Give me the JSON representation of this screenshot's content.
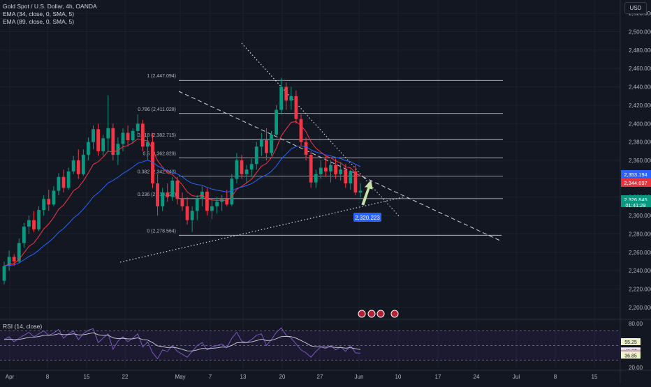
{
  "header": {
    "title": "Gold Spot / U.S. Dollar, 4h, OANDA",
    "indicator_1": "EMA (34, close, 0, SMA, 5)",
    "indicator_2": "EMA (89, close, 0, SMA, 5)",
    "currency": "USD"
  },
  "rsi": {
    "label": "RSI (14, close)",
    "axis_ticks": [
      "80.00",
      "20.00"
    ],
    "badges": [
      {
        "text": "55.25",
        "bg": "#f0f3c8",
        "fg": "#131722"
      },
      {
        "text": "42.65",
        "bg": "#e9e9ee",
        "fg": "#131722"
      },
      {
        "text": "39.48",
        "bg": "#c6a4c2",
        "fg": "#131722"
      },
      {
        "text": "36.85",
        "bg": "#f0f3c8",
        "fg": "#131722"
      }
    ]
  },
  "price_badges": [
    {
      "text": "2,353.194",
      "bg": "#2962ff"
    },
    {
      "text": "2,344.697",
      "bg": "#e8323c"
    },
    {
      "text": "2,326.845",
      "bg": "#089981"
    },
    {
      "text": "01:41:29",
      "bg": "#089981"
    }
  ],
  "annotation": {
    "label": "2,320.223",
    "color": "#2962ff"
  },
  "colors": {
    "up": "#089981",
    "down": "#f23645",
    "ema34": "#f23645",
    "ema89": "#2962ff"
  },
  "chart_data": {
    "type": "candlestick",
    "y_ticks": [
      "2,520.000",
      "2,500.000",
      "2,480.000",
      "2,460.000",
      "2,440.000",
      "2,420.000",
      "2,400.000",
      "2,380.000",
      "2,360.000",
      "2,340.000",
      "2,320.000",
      "2,300.000",
      "2,280.000",
      "2,260.000",
      "2,240.000",
      "2,220.000",
      "2,200.000"
    ],
    "ylim": [
      2190,
      2530
    ],
    "x_ticks": [
      "Apr",
      "8",
      "15",
      "22",
      "May",
      "7",
      "13",
      "20",
      "27",
      "Jun",
      "10",
      "17",
      "24",
      "Jul",
      "8",
      "15"
    ],
    "fib_levels": [
      {
        "label": "1 (2,447.094)",
        "value": 2447.094
      },
      {
        "label": "0.786 (2,411.028)",
        "value": 2411.028
      },
      {
        "label": "0.618 (2,382.715)",
        "value": 2382.715
      },
      {
        "label": "0.5 (2,362.829)",
        "value": 2362.829
      },
      {
        "label": "0.382 (2,342.942)",
        "value": 2342.942
      },
      {
        "label": "0.236 (2,318.337)",
        "value": 2318.337
      },
      {
        "label": "0 (2,278.564)",
        "value": 2278.564
      }
    ],
    "series": [
      {
        "name": "Gold Spot / U.S. Dollar",
        "kind": "ohlc",
        "points": [
          [
            2229,
            2250,
            2225,
            2245
          ],
          [
            2245,
            2262,
            2240,
            2255
          ],
          [
            2255,
            2258,
            2245,
            2250
          ],
          [
            2250,
            2275,
            2248,
            2270
          ],
          [
            2270,
            2292,
            2265,
            2288
          ],
          [
            2288,
            2300,
            2280,
            2295
          ],
          [
            2295,
            2305,
            2282,
            2285
          ],
          [
            2285,
            2310,
            2283,
            2306
          ],
          [
            2306,
            2322,
            2300,
            2318
          ],
          [
            2318,
            2328,
            2305,
            2312
          ],
          [
            2312,
            2332,
            2310,
            2327
          ],
          [
            2327,
            2346,
            2322,
            2342
          ],
          [
            2342,
            2350,
            2325,
            2330
          ],
          [
            2330,
            2352,
            2328,
            2348
          ],
          [
            2348,
            2365,
            2345,
            2360
          ],
          [
            2360,
            2372,
            2340,
            2345
          ],
          [
            2345,
            2372,
            2343,
            2366
          ],
          [
            2366,
            2385,
            2360,
            2380
          ],
          [
            2380,
            2398,
            2372,
            2394
          ],
          [
            2394,
            2400,
            2365,
            2370
          ],
          [
            2370,
            2388,
            2365,
            2384
          ],
          [
            2384,
            2431,
            2370,
            2395
          ],
          [
            2395,
            2400,
            2360,
            2366
          ],
          [
            2366,
            2385,
            2355,
            2378
          ],
          [
            2378,
            2395,
            2370,
            2390
          ],
          [
            2390,
            2398,
            2375,
            2382
          ],
          [
            2382,
            2395,
            2378,
            2392
          ],
          [
            2392,
            2410,
            2385,
            2400
          ],
          [
            2400,
            2404,
            2370,
            2375
          ],
          [
            2375,
            2388,
            2360,
            2380
          ],
          [
            2380,
            2390,
            2330,
            2335
          ],
          [
            2335,
            2345,
            2300,
            2310
          ],
          [
            2310,
            2330,
            2305,
            2325
          ],
          [
            2325,
            2335,
            2315,
            2320
          ],
          [
            2320,
            2342,
            2316,
            2338
          ],
          [
            2338,
            2342,
            2312,
            2318
          ],
          [
            2318,
            2325,
            2305,
            2310
          ],
          [
            2310,
            2320,
            2290,
            2295
          ],
          [
            2295,
            2310,
            2282,
            2305
          ],
          [
            2305,
            2322,
            2295,
            2318
          ],
          [
            2318,
            2332,
            2310,
            2326
          ],
          [
            2326,
            2330,
            2300,
            2305
          ],
          [
            2305,
            2318,
            2296,
            2310
          ],
          [
            2310,
            2320,
            2302,
            2315
          ],
          [
            2315,
            2322,
            2305,
            2318
          ],
          [
            2318,
            2328,
            2310,
            2312
          ],
          [
            2312,
            2345,
            2310,
            2340
          ],
          [
            2340,
            2368,
            2335,
            2360
          ],
          [
            2360,
            2366,
            2340,
            2345
          ],
          [
            2345,
            2355,
            2335,
            2350
          ],
          [
            2350,
            2362,
            2342,
            2356
          ],
          [
            2356,
            2380,
            2350,
            2375
          ],
          [
            2375,
            2390,
            2365,
            2382
          ],
          [
            2382,
            2395,
            2360,
            2368
          ],
          [
            2368,
            2392,
            2365,
            2388
          ],
          [
            2388,
            2420,
            2385,
            2415
          ],
          [
            2415,
            2450,
            2410,
            2440
          ],
          [
            2440,
            2445,
            2415,
            2425
          ],
          [
            2425,
            2440,
            2415,
            2430
          ],
          [
            2430,
            2436,
            2400,
            2405
          ],
          [
            2405,
            2410,
            2375,
            2380
          ],
          [
            2380,
            2385,
            2360,
            2366
          ],
          [
            2366,
            2370,
            2330,
            2336
          ],
          [
            2336,
            2350,
            2330,
            2345
          ],
          [
            2345,
            2360,
            2340,
            2352
          ],
          [
            2352,
            2365,
            2342,
            2348
          ],
          [
            2348,
            2360,
            2336,
            2355
          ],
          [
            2355,
            2362,
            2340,
            2345
          ],
          [
            2345,
            2358,
            2338,
            2350
          ],
          [
            2350,
            2356,
            2330,
            2335
          ],
          [
            2335,
            2350,
            2328,
            2348
          ],
          [
            2348,
            2355,
            2322,
            2325
          ],
          [
            2325,
            2335,
            2320,
            2327
          ]
        ]
      },
      {
        "name": "EMA (34, close, 0, SMA, 5)",
        "kind": "line"
      },
      {
        "name": "EMA (89, close, 0, SMA, 5)",
        "kind": "line"
      }
    ],
    "rsi_values": [
      58,
      62,
      55,
      60,
      64,
      68,
      62,
      66,
      70,
      64,
      67,
      72,
      60,
      66,
      70,
      58,
      66,
      71,
      73,
      54,
      60,
      66,
      45,
      56,
      62,
      55,
      60,
      66,
      48,
      55,
      40,
      32,
      44,
      42,
      50,
      42,
      38,
      34,
      42,
      50,
      54,
      44,
      48,
      50,
      52,
      47,
      60,
      68,
      56,
      54,
      58,
      64,
      66,
      50,
      58,
      68,
      74,
      64,
      60,
      52,
      44,
      40,
      34,
      42,
      48,
      46,
      50,
      44,
      48,
      42,
      50,
      40,
      39.48
    ],
    "grid": true,
    "legend": "top-left"
  }
}
